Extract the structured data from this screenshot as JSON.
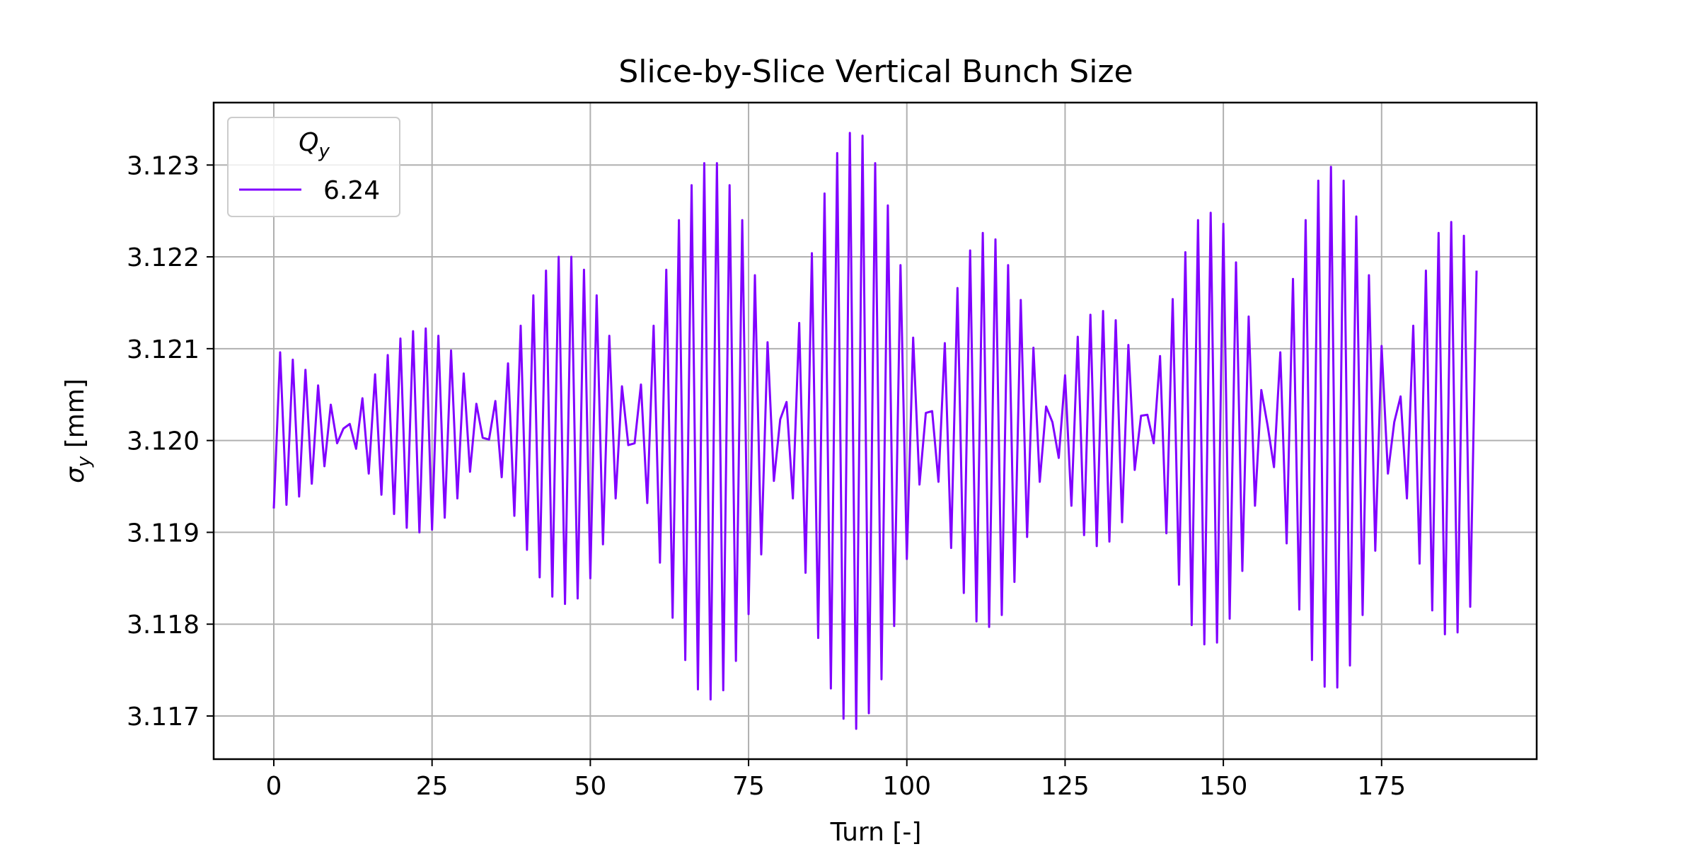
{
  "chart_data": {
    "type": "line",
    "title": "Slice-by-Slice Vertical Bunch Size",
    "xlabel": "Turn [-]",
    "ylabel_main": "σ",
    "ylabel_sub": "y",
    "ylabel_unit": " [mm]",
    "xlim": [
      -9.5,
      199.5
    ],
    "ylim": [
      3.11653,
      3.12368
    ],
    "xticks": [
      0,
      25,
      50,
      75,
      100,
      125,
      150,
      175
    ],
    "xtick_labels": [
      "0",
      "25",
      "50",
      "75",
      "100",
      "125",
      "150",
      "175"
    ],
    "yticks": [
      3.117,
      3.118,
      3.119,
      3.12,
      3.121,
      3.122,
      3.123
    ],
    "ytick_labels": [
      "3.117",
      "3.118",
      "3.119",
      "3.120",
      "3.121",
      "3.122",
      "3.123"
    ],
    "grid": true,
    "legend": {
      "title_main": "Q",
      "title_sub": "y",
      "placement": "upper left"
    },
    "series": [
      {
        "name": "6.24",
        "color": "#8000ff",
        "x_start": 0,
        "x_step": 1,
        "y": [
          3.11926,
          3.12096,
          3.1193,
          3.12088,
          3.11939,
          3.12077,
          3.11953,
          3.1206,
          3.11972,
          3.12039,
          3.11997,
          3.12013,
          3.12018,
          3.11991,
          3.12046,
          3.11964,
          3.12072,
          3.11941,
          3.12093,
          3.1192,
          3.12111,
          3.11905,
          3.12119,
          3.119,
          3.12122,
          3.11903,
          3.12114,
          3.11916,
          3.12098,
          3.11937,
          3.12073,
          3.11966,
          3.1204,
          3.12003,
          3.12001,
          3.12043,
          3.1196,
          3.12084,
          3.11918,
          3.12125,
          3.11881,
          3.12158,
          3.11851,
          3.12185,
          3.1183,
          3.122,
          3.11822,
          3.122,
          3.11828,
          3.12186,
          3.1185,
          3.12158,
          3.11887,
          3.12114,
          3.11937,
          3.12059,
          3.11995,
          3.11997,
          3.12061,
          3.11932,
          3.12125,
          3.11867,
          3.12186,
          3.11807,
          3.1224,
          3.11761,
          3.12278,
          3.11729,
          3.12302,
          3.11718,
          3.12302,
          3.11728,
          3.12278,
          3.1176,
          3.1224,
          3.11811,
          3.1218,
          3.11876,
          3.12107,
          3.11956,
          3.12023,
          3.12042,
          3.11937,
          3.12128,
          3.11856,
          3.12204,
          3.11785,
          3.12269,
          3.1173,
          3.12313,
          3.11697,
          3.12335,
          3.11686,
          3.12332,
          3.11703,
          3.12302,
          3.1174,
          3.12256,
          3.11798,
          3.12191,
          3.11871,
          3.12112,
          3.11952,
          3.1203,
          3.12032,
          3.11955,
          3.12106,
          3.11883,
          3.12166,
          3.11834,
          3.12207,
          3.11803,
          3.12226,
          3.11797,
          3.12219,
          3.1181,
          3.12191,
          3.11846,
          3.12153,
          3.11895,
          3.12101,
          3.11955,
          3.12037,
          3.1202,
          3.11981,
          3.12071,
          3.11929,
          3.12113,
          3.11897,
          3.12137,
          3.11885,
          3.12141,
          3.1189,
          3.12131,
          3.11911,
          3.12104,
          3.11968,
          3.12027,
          3.12028,
          3.11997,
          3.12092,
          3.11899,
          3.12154,
          3.11843,
          3.12205,
          3.11799,
          3.1224,
          3.11778,
          3.12248,
          3.1178,
          3.12236,
          3.11806,
          3.12194,
          3.11858,
          3.12135,
          3.11929,
          3.12055,
          3.12016,
          3.11971,
          3.12096,
          3.11888,
          3.12176,
          3.11816,
          3.1224,
          3.11761,
          3.12283,
          3.11732,
          3.12298,
          3.11731,
          3.12283,
          3.11755,
          3.12244,
          3.1181,
          3.1218,
          3.1188,
          3.12103,
          3.11964,
          3.1202,
          3.12048,
          3.11937,
          3.12125,
          3.11866,
          3.12185,
          3.11815,
          3.12226,
          3.11789,
          3.12238,
          3.11791,
          3.12223,
          3.11819,
          3.12185
        ]
      }
    ]
  }
}
